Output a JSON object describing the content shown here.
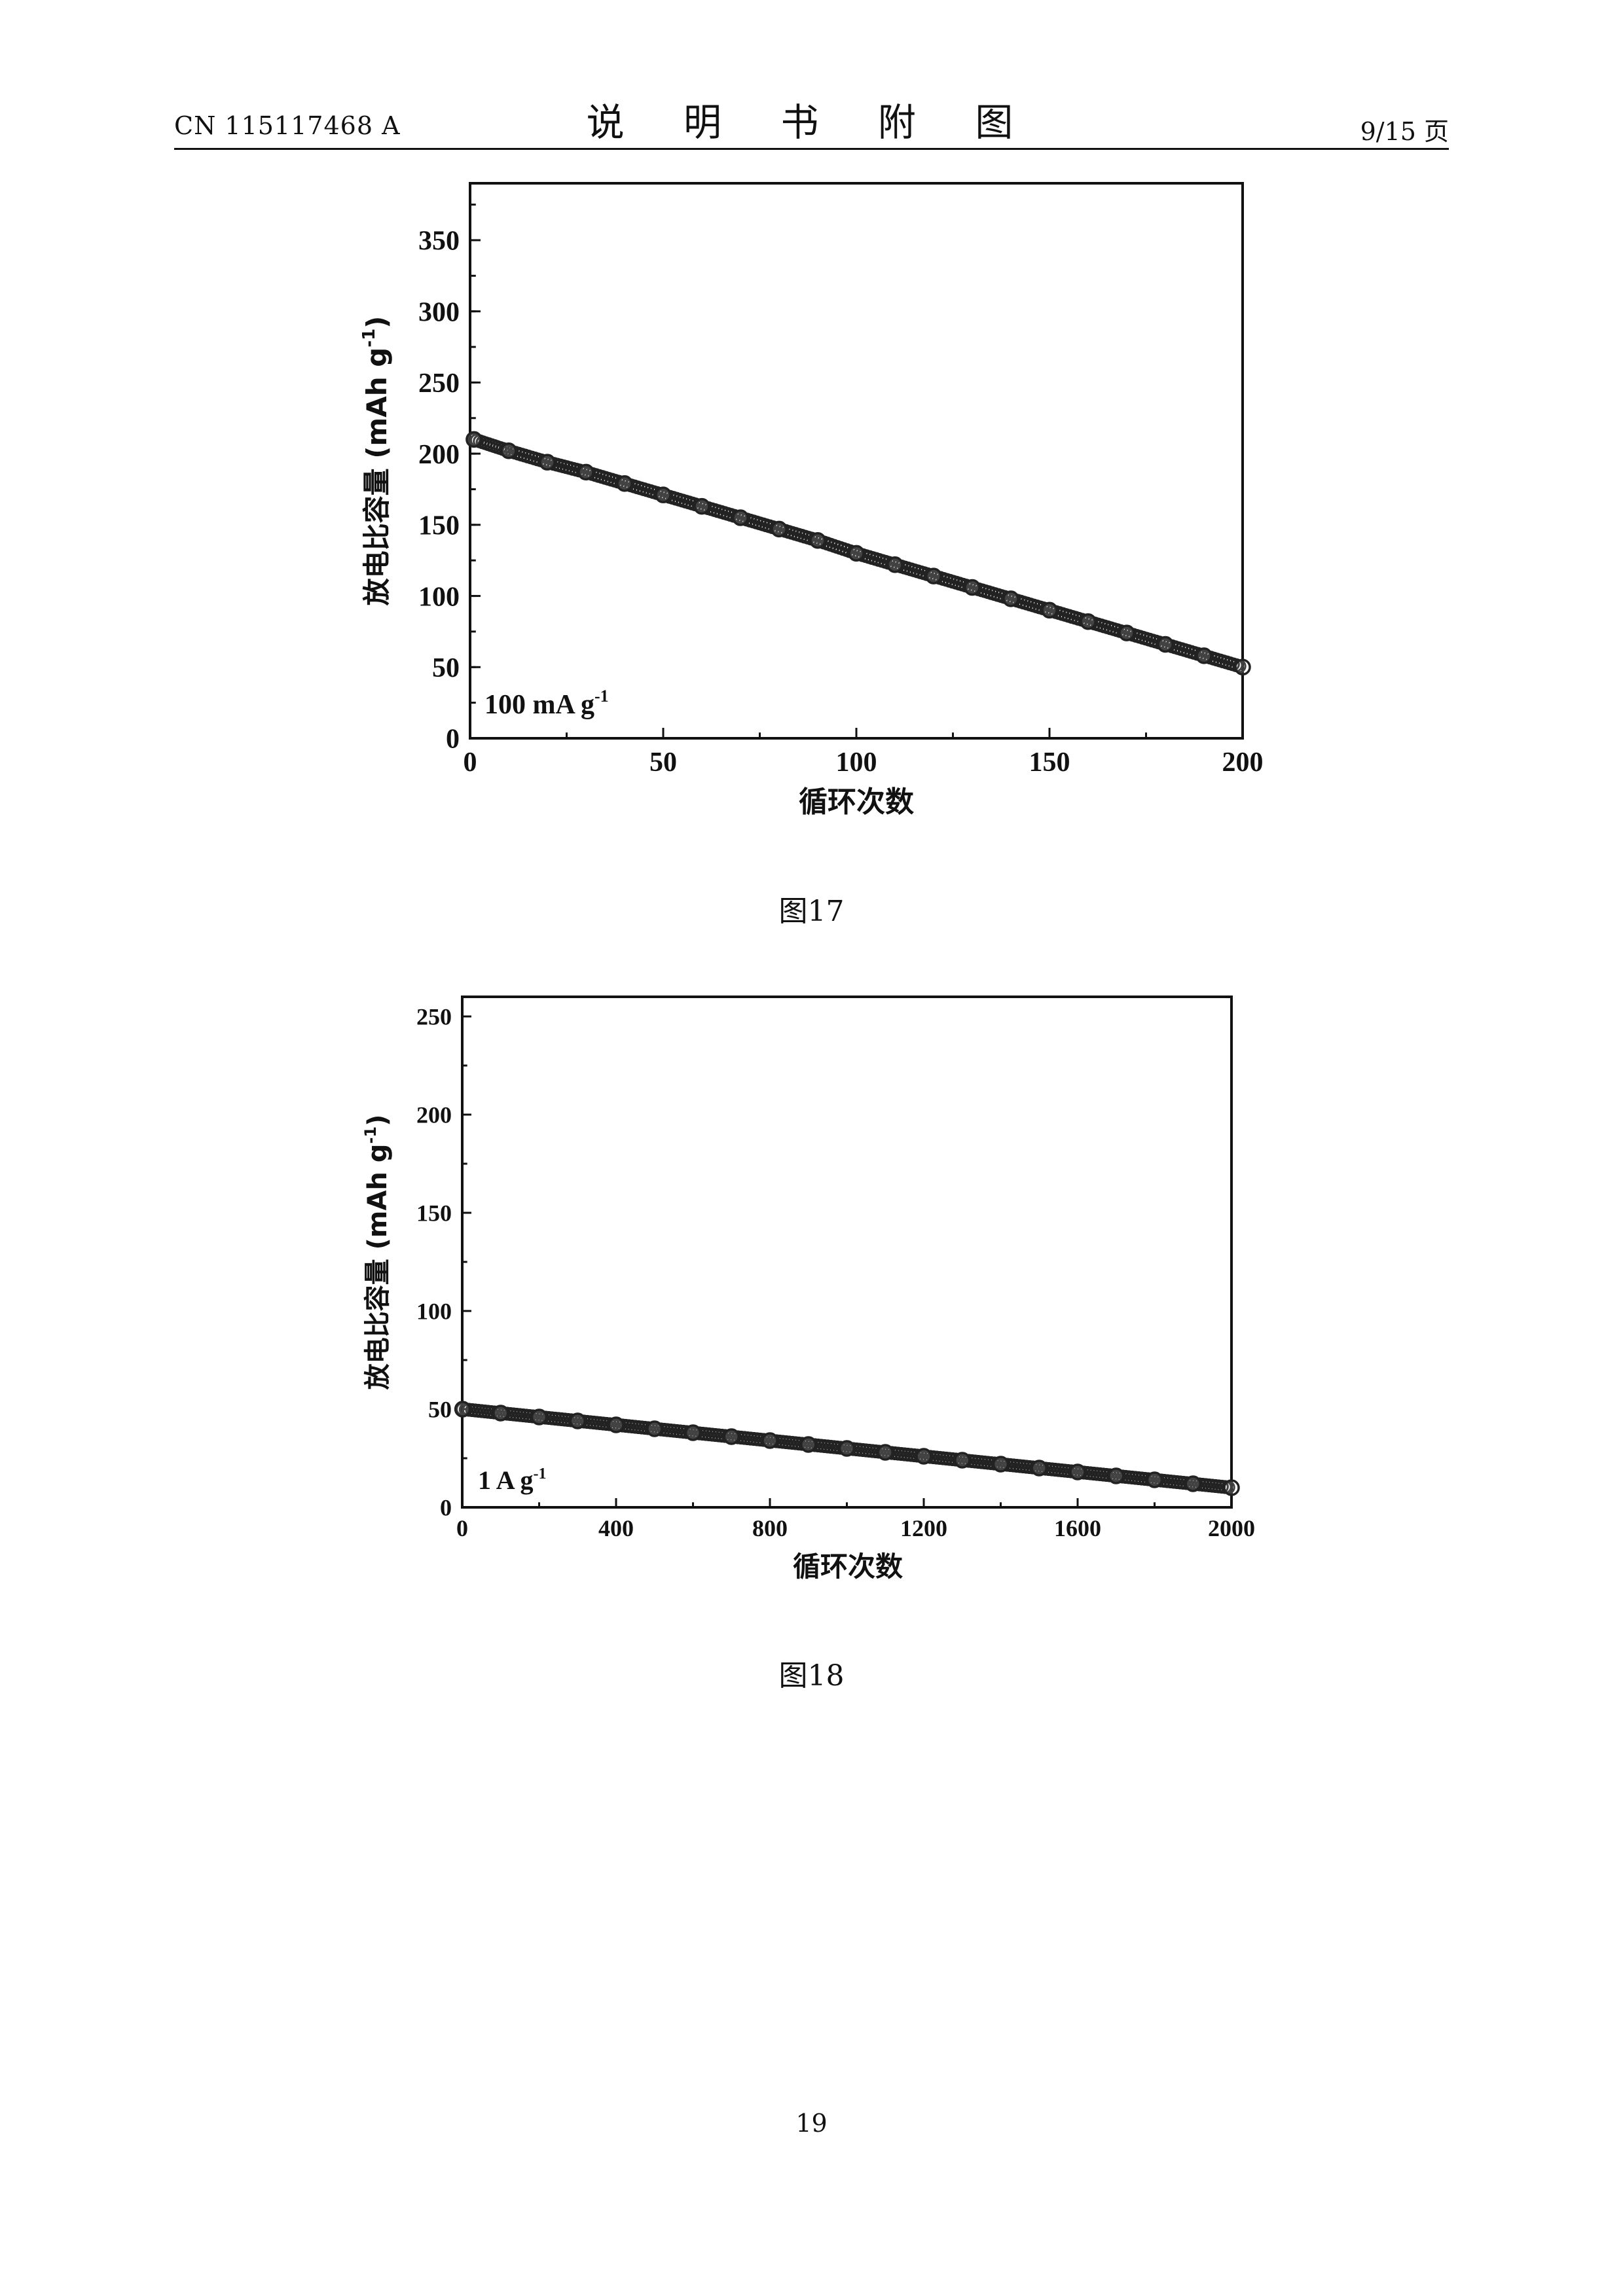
{
  "header": {
    "doc_number": "CN 115117468 A",
    "section_title": "说 明 书 附 图",
    "page_of": "9/15 页"
  },
  "figures": [
    {
      "caption": "图17"
    },
    {
      "caption": "图18"
    }
  ],
  "footer": {
    "page_number": "19"
  },
  "chart_data": [
    {
      "type": "scatter",
      "title": "",
      "xlabel": "循环次数",
      "ylabel": "放电比容量 (mAh g-1)",
      "annotation": "100 mA g-1",
      "xlim": [
        0,
        200
      ],
      "ylim": [
        0,
        390
      ],
      "xticks": [
        0,
        50,
        100,
        150,
        200
      ],
      "yticks": [
        0,
        50,
        100,
        150,
        200,
        250,
        300,
        350
      ],
      "grid": false,
      "legend": "none",
      "series": [
        {
          "marker": "open-circle",
          "color": "#222222",
          "x": [
            1,
            10,
            20,
            30,
            40,
            50,
            60,
            70,
            80,
            90,
            100,
            110,
            120,
            130,
            140,
            150,
            160,
            170,
            180,
            190,
            200
          ],
          "y": [
            210,
            202,
            194,
            187,
            179,
            171,
            163,
            155,
            147,
            139,
            130,
            122,
            114,
            106,
            98,
            90,
            82,
            74,
            66,
            58,
            50
          ]
        }
      ]
    },
    {
      "type": "scatter",
      "title": "",
      "xlabel": "循环次数",
      "ylabel": "放电比容量 (mAh g-1)",
      "annotation": "1 A g-1",
      "xlim": [
        0,
        2000
      ],
      "ylim": [
        0,
        260
      ],
      "xticks": [
        0,
        400,
        800,
        1200,
        1600,
        2000
      ],
      "yticks": [
        0,
        50,
        100,
        150,
        200,
        250
      ],
      "grid": false,
      "legend": "none",
      "series": [
        {
          "marker": "open-circle",
          "color": "#222222",
          "x": [
            1,
            100,
            200,
            300,
            400,
            500,
            600,
            700,
            800,
            900,
            1000,
            1100,
            1200,
            1300,
            1400,
            1500,
            1600,
            1700,
            1800,
            1900,
            2000
          ],
          "y": [
            50,
            48,
            46,
            44,
            42,
            40,
            38,
            36,
            34,
            32,
            30,
            28,
            26,
            24,
            22,
            20,
            18,
            16,
            14,
            12,
            10
          ]
        }
      ]
    }
  ]
}
